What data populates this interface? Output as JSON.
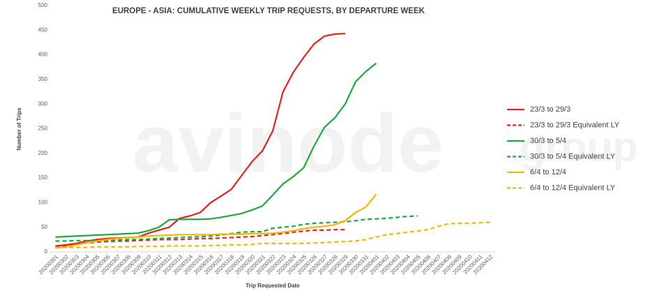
{
  "chart_data": {
    "type": "line",
    "title": "EUROPE - ASIA: CUMULATIVE WEEKLY TRIP REQUESTS, BY DEPARTURE WEEK",
    "watermark": "avinode",
    "watermark_small": "group",
    "x_label": "Trip Requested Date",
    "y_label": "Number of Trips",
    "categories": [
      "20200301",
      "20200302",
      "20200303",
      "20200304",
      "20200305",
      "20200306",
      "20200307",
      "20200308",
      "20200309",
      "20200310",
      "20200311",
      "20200312",
      "20200313",
      "20200314",
      "20200315",
      "20200316",
      "20200317",
      "20200318",
      "20200319",
      "20200320",
      "20200321",
      "20200322",
      "20200323",
      "20200324",
      "20200325",
      "20200326",
      "20200327",
      "20200328",
      "20200329",
      "20200330",
      "20200331",
      "20200401",
      "20200402",
      "20200403",
      "20200404",
      "20200405",
      "20200406",
      "20200407",
      "20200408",
      "20200409",
      "20200410",
      "20200411",
      "20200412"
    ],
    "ylim": [
      0,
      500
    ],
    "yticks": [
      0,
      50,
      100,
      150,
      200,
      250,
      300,
      350,
      400,
      450,
      500
    ],
    "grid": false,
    "legend": "right",
    "series": [
      {
        "name": "23/3 to 29/3",
        "color": "#e8201e",
        "style": "solid",
        "values": [
          12,
          14,
          17,
          22,
          25,
          27,
          28,
          29,
          30,
          38,
          44,
          50,
          68,
          73,
          80,
          100,
          113,
          127,
          155,
          183,
          205,
          245,
          325,
          365,
          395,
          422,
          438,
          442,
          443,
          null,
          null,
          null,
          null,
          null,
          null,
          null,
          null,
          null,
          null,
          null,
          null,
          null,
          null
        ]
      },
      {
        "name": "23/3 to 29/3 Equivalent LY",
        "color": "#e8201e",
        "style": "dashed",
        "values": [
          10,
          12,
          15,
          18,
          20,
          21,
          22,
          22,
          23,
          24,
          25,
          25,
          25,
          26,
          27,
          27,
          28,
          29,
          30,
          31,
          33,
          35,
          37,
          40,
          42,
          44,
          44,
          45,
          45,
          null,
          null,
          null,
          null,
          null,
          null,
          null,
          null,
          null,
          null,
          null,
          null,
          null,
          null
        ]
      },
      {
        "name": "30/3 to 5/4",
        "color": "#1aaa3c",
        "style": "solid",
        "values": [
          30,
          31,
          32,
          33,
          34,
          35,
          36,
          37,
          38,
          43,
          50,
          65,
          66,
          66,
          66,
          67,
          70,
          74,
          78,
          85,
          93,
          115,
          138,
          153,
          171,
          215,
          253,
          272,
          300,
          345,
          366,
          383,
          null,
          null,
          null,
          null,
          null,
          null,
          null,
          null,
          null,
          null,
          null
        ]
      },
      {
        "name": "30/3 to 5/4 Equivalent LY",
        "color": "#1aaa3c",
        "style": "dashed",
        "values": [
          22,
          22,
          23,
          23,
          23,
          24,
          24,
          25,
          25,
          26,
          27,
          28,
          29,
          30,
          31,
          32,
          34,
          37,
          40,
          41,
          41,
          48,
          50,
          52,
          56,
          58,
          59,
          60,
          61,
          63,
          66,
          67,
          68,
          70,
          72,
          73,
          null,
          null,
          null,
          null,
          null,
          null,
          null
        ]
      },
      {
        "name": "6/4 to 12/4",
        "color": "#f5b800",
        "style": "solid",
        "values": [
          8,
          10,
          14,
          18,
          22,
          25,
          27,
          29,
          30,
          32,
          33,
          34,
          35,
          35,
          35,
          35,
          36,
          36,
          36,
          37,
          37,
          38,
          40,
          43,
          47,
          50,
          52,
          55,
          63,
          80,
          91,
          117,
          null,
          null,
          null,
          null,
          null,
          null,
          null,
          null,
          null,
          null,
          null
        ]
      },
      {
        "name": "6/4 to 12/4 Equivalent LY",
        "color": "#f5b800",
        "style": "dashed",
        "values": [
          9,
          9,
          9,
          9,
          10,
          10,
          10,
          10,
          11,
          11,
          11,
          12,
          12,
          12,
          12,
          13,
          13,
          14,
          14,
          15,
          17,
          17,
          17,
          17,
          17,
          18,
          19,
          20,
          21,
          22,
          25,
          30,
          35,
          37,
          40,
          42,
          45,
          52,
          57,
          58,
          58,
          59,
          60
        ]
      }
    ]
  }
}
